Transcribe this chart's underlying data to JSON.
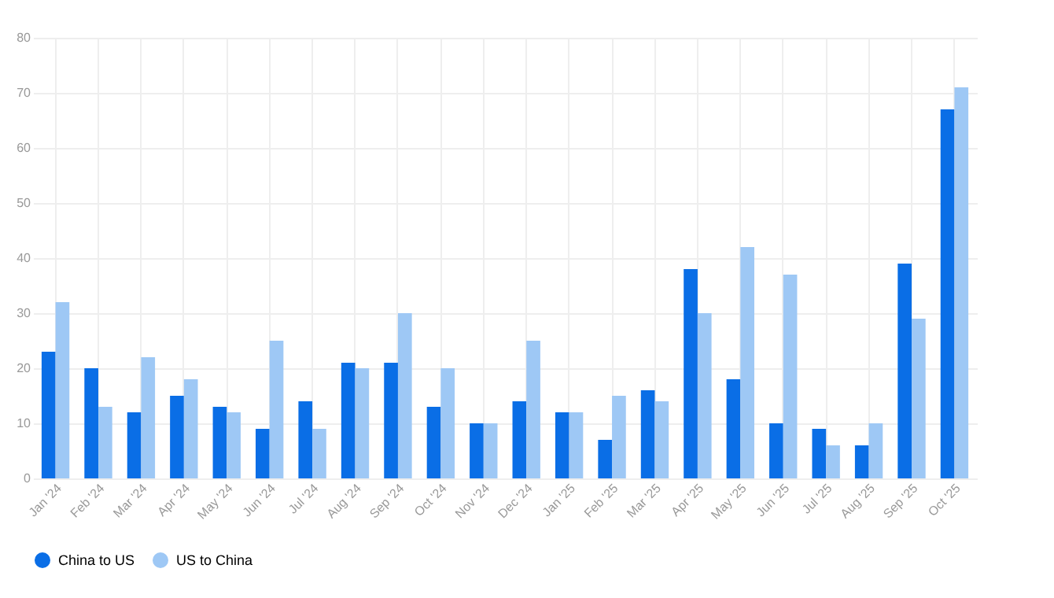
{
  "chart_data": {
    "type": "bar",
    "categories": [
      "Jan '24",
      "Feb '24",
      "Mar '24",
      "Apr '24",
      "May '24",
      "Jun '24",
      "Jul '24",
      "Aug '24",
      "Sep '24",
      "Oct '24",
      "Nov '24",
      "Dec '24",
      "Jan '25",
      "Feb '25",
      "Mar '25",
      "Apr '25",
      "May '25",
      "Jun '25",
      "Jul '25",
      "Aug '25",
      "Sep '25",
      "Oct '25"
    ],
    "series": [
      {
        "name": "China to US",
        "color": "#0a6ee6",
        "values": [
          23,
          20,
          12,
          15,
          13,
          9,
          14,
          21,
          21,
          13,
          10,
          14,
          12,
          7,
          16,
          38,
          18,
          10,
          9,
          6,
          39,
          67
        ]
      },
      {
        "name": "US to China",
        "color": "#9ec8f5",
        "values": [
          32,
          13,
          22,
          18,
          12,
          25,
          9,
          20,
          30,
          20,
          10,
          25,
          12,
          15,
          14,
          30,
          42,
          37,
          6,
          10,
          29,
          71
        ]
      }
    ],
    "ylim": [
      0,
      80
    ],
    "yticks": [
      0,
      10,
      20,
      30,
      40,
      50,
      60,
      70,
      80
    ],
    "grid": true,
    "legend": "bottom"
  }
}
